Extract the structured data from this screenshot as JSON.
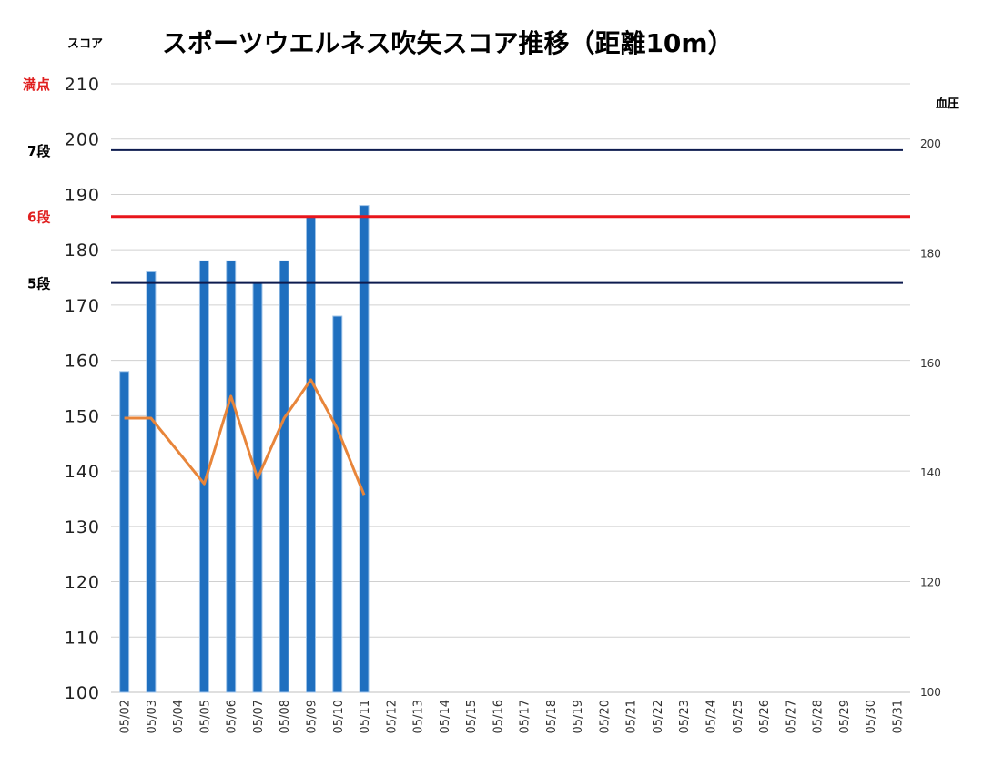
{
  "chart_data": {
    "type": "bar",
    "title": "スポーツウエルネス吹矢スコア推移（距離10m）",
    "ylabel": "スコア",
    "y2label": "血圧",
    "ylim": [
      100,
      210
    ],
    "y2lim": [
      100,
      200
    ],
    "yticks": [
      100,
      110,
      120,
      130,
      140,
      150,
      160,
      170,
      180,
      190,
      200,
      210
    ],
    "y2ticks": [
      100,
      120,
      140,
      160,
      180,
      200
    ],
    "grid": true,
    "categories": [
      "05/02",
      "05/03",
      "05/04",
      "05/05",
      "05/06",
      "05/07",
      "05/08",
      "05/09",
      "05/10",
      "05/11",
      "05/12",
      "05/13",
      "05/14",
      "05/15",
      "05/16",
      "05/17",
      "05/18",
      "05/19",
      "05/20",
      "05/21",
      "05/22",
      "05/23",
      "05/24",
      "05/25",
      "05/26",
      "05/27",
      "05/28",
      "05/29",
      "05/30",
      "05/31"
    ],
    "bar_color": "#1f6fbf",
    "line_color": "#e8853a",
    "series": [
      {
        "type": "bar",
        "axis": "left",
        "values": [
          158,
          176,
          null,
          178,
          178,
          174,
          178,
          186,
          168,
          188,
          null,
          null,
          null,
          null,
          null,
          null,
          null,
          null,
          null,
          null,
          null,
          null,
          null,
          null,
          null,
          null,
          null,
          null,
          null,
          null
        ]
      },
      {
        "type": "line",
        "axis": "right",
        "values": [
          150,
          150,
          null,
          138,
          154,
          139,
          150,
          157,
          148,
          136,
          null,
          null,
          null,
          null,
          null,
          null,
          null,
          null,
          null,
          null,
          null,
          null,
          null,
          null,
          null,
          null,
          null,
          null,
          null,
          null
        ]
      }
    ],
    "reference_lines": [
      {
        "label": "満点",
        "value": 210,
        "color": "#e02020",
        "draw_line": false
      },
      {
        "label": "7段",
        "value": 198,
        "color": "#0d1b4f",
        "label_color": "#000000",
        "draw_line": true
      },
      {
        "label": "6段",
        "value": 186,
        "color": "#e8151b",
        "label_color": "#e02020",
        "draw_line": true
      },
      {
        "label": "5段",
        "value": 174,
        "color": "#0d1b4f",
        "label_color": "#000000",
        "draw_line": true
      }
    ]
  }
}
